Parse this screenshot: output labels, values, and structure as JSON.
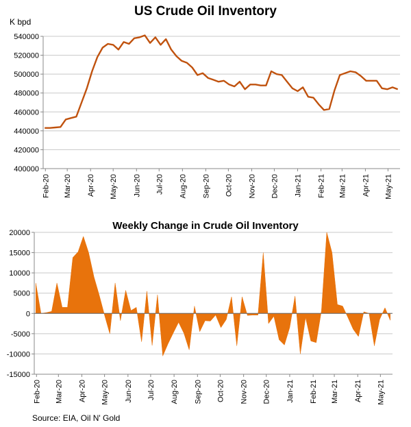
{
  "source": "Source: EIA, Oil N' Gold",
  "colors": {
    "line": "#C0520E",
    "area": "#E8730C",
    "grid": "#C8C8C8",
    "axis": "#888888"
  },
  "chart_data": [
    {
      "type": "line",
      "title": "US Crude Oil Inventory",
      "ylabel": "K bpd",
      "ylim": [
        400000,
        540000
      ],
      "yticks": [
        "400000",
        "420000",
        "440000",
        "460000",
        "480000",
        "500000",
        "520000",
        "540000"
      ],
      "xticks": [
        "Feb-20",
        "Mar-20",
        "Apr-20",
        "May-20",
        "Jun-20",
        "Jul-20",
        "Aug-20",
        "Sep-20",
        "Oct-20",
        "Nov-20",
        "Dec-20",
        "Jan-21",
        "Feb-21",
        "Mar-21",
        "Apr-21",
        "May-21"
      ],
      "x_start": "2020-01-31",
      "interval": "weekly",
      "values": [
        443000,
        443000,
        443500,
        444000,
        452000,
        453500,
        455000,
        470000,
        485000,
        503000,
        518000,
        528000,
        532000,
        531000,
        526000,
        534000,
        532000,
        538000,
        539000,
        541000,
        533000,
        539000,
        531000,
        537000,
        526000,
        519000,
        514000,
        512000,
        507000,
        499000,
        501000,
        496000,
        494000,
        492000,
        493000,
        489000,
        487000,
        492000,
        484000,
        489000,
        489000,
        488000,
        488000,
        503000,
        500000,
        499000,
        492000,
        485000,
        482000,
        486000,
        476000,
        475000,
        468000,
        462000,
        463000,
        483000,
        499000,
        501000,
        503000,
        502000,
        498000,
        493000,
        493000,
        493000,
        485000,
        484000,
        486000,
        484000
      ]
    },
    {
      "type": "area",
      "title": "Weekly Change in Crude Oil Inventory",
      "ylim": [
        -15000,
        20000
      ],
      "yticks": [
        "-15000",
        "-10000",
        "-5000",
        "0",
        "5000",
        "10000",
        "15000",
        "20000"
      ],
      "xticks": [
        "Feb-20",
        "Mar-20",
        "Apr-20",
        "May-20",
        "Jun-20",
        "Jul-20",
        "Aug-20",
        "Sep-20",
        "Oct-20",
        "Nov-20",
        "Dec-20",
        "Jan-21",
        "Feb-21",
        "Mar-21",
        "Apr-21",
        "May-21"
      ],
      "x_start": "2020-01-31",
      "interval": "weekly",
      "values": [
        7500,
        0,
        200,
        500,
        7500,
        1500,
        1500,
        13800,
        15200,
        19000,
        15000,
        9000,
        4500,
        -400,
        -5000,
        7500,
        -1800,
        5700,
        700,
        1500,
        -7000,
        5500,
        -7900,
        4600,
        -10500,
        -7500,
        -4800,
        -2200,
        -4900,
        -9000,
        1800,
        -4500,
        -1800,
        -1900,
        -400,
        -3500,
        -1500,
        4100,
        -8000,
        4100,
        -500,
        -400,
        -400,
        15000,
        -2500,
        -700,
        -6500,
        -7800,
        -3500,
        4300,
        -10000,
        -1000,
        -6800,
        -7200,
        700,
        20000,
        15000,
        2200,
        1800,
        -1000,
        -3900,
        -5700,
        400,
        0,
        -8000,
        -1500,
        1400,
        -1700
      ]
    }
  ]
}
